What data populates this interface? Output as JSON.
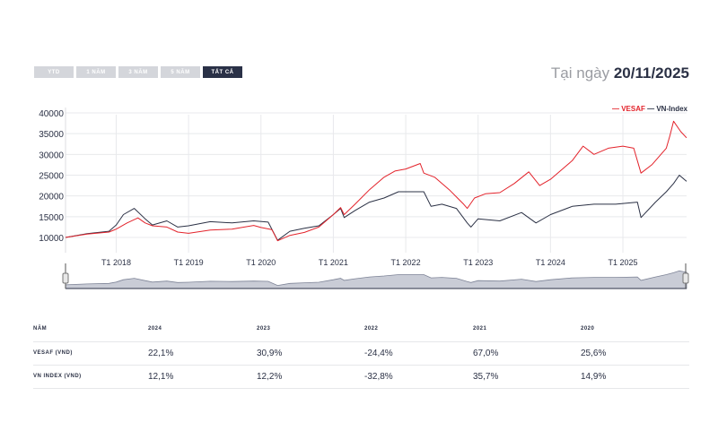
{
  "range_buttons": [
    {
      "label": "YTD",
      "active": false
    },
    {
      "label": "1 NĂM",
      "active": false
    },
    {
      "label": "3 NĂM",
      "active": false
    },
    {
      "label": "5 NĂM",
      "active": false
    },
    {
      "label": "TẤT CẢ",
      "active": true
    }
  ],
  "as_of": {
    "prefix": "Tại ngày",
    "date": "20/11/2025"
  },
  "chart_data": {
    "type": "line",
    "title": "",
    "xlabel": "",
    "ylabel": "",
    "ylim": [
      6300,
      40000
    ],
    "xlim": [
      2017.3,
      2025.88
    ],
    "y_ticks": [
      10000,
      15000,
      20000,
      25000,
      30000,
      35000,
      40000
    ],
    "x_ticks": [
      {
        "x": 2018,
        "label": "T1 2018"
      },
      {
        "x": 2019,
        "label": "T1 2019"
      },
      {
        "x": 2020,
        "label": "T1 2020"
      },
      {
        "x": 2021,
        "label": "T1 2021"
      },
      {
        "x": 2022,
        "label": "T1 2022"
      },
      {
        "x": 2023,
        "label": "T1 2023"
      },
      {
        "x": 2024,
        "label": "T1 2024"
      },
      {
        "x": 2025,
        "label": "T1 2025"
      }
    ],
    "grid": true,
    "legend_position": "top-right",
    "series": [
      {
        "name": "VESAF",
        "color": "#e3232b",
        "points": [
          [
            2017.3,
            10000
          ],
          [
            2017.6,
            10800
          ],
          [
            2017.9,
            11300
          ],
          [
            2018.0,
            12000
          ],
          [
            2018.15,
            13500
          ],
          [
            2018.3,
            14700
          ],
          [
            2018.4,
            13500
          ],
          [
            2018.5,
            12800
          ],
          [
            2018.7,
            12500
          ],
          [
            2018.85,
            11300
          ],
          [
            2019.0,
            11000
          ],
          [
            2019.3,
            11800
          ],
          [
            2019.6,
            12000
          ],
          [
            2019.9,
            12900
          ],
          [
            2020.0,
            12400
          ],
          [
            2020.15,
            11900
          ],
          [
            2020.23,
            9200
          ],
          [
            2020.4,
            10500
          ],
          [
            2020.6,
            11200
          ],
          [
            2020.8,
            12500
          ],
          [
            2021.0,
            15500
          ],
          [
            2021.1,
            17200
          ],
          [
            2021.15,
            15500
          ],
          [
            2021.3,
            18000
          ],
          [
            2021.5,
            21500
          ],
          [
            2021.7,
            24500
          ],
          [
            2021.85,
            26000
          ],
          [
            2022.0,
            26500
          ],
          [
            2022.2,
            27800
          ],
          [
            2022.25,
            25500
          ],
          [
            2022.4,
            24500
          ],
          [
            2022.6,
            21500
          ],
          [
            2022.8,
            18000
          ],
          [
            2022.85,
            17000
          ],
          [
            2022.95,
            19500
          ],
          [
            2023.1,
            20500
          ],
          [
            2023.3,
            20800
          ],
          [
            2023.5,
            23000
          ],
          [
            2023.7,
            25800
          ],
          [
            2023.85,
            22500
          ],
          [
            2024.0,
            24000
          ],
          [
            2024.2,
            27000
          ],
          [
            2024.3,
            28500
          ],
          [
            2024.45,
            32000
          ],
          [
            2024.6,
            30000
          ],
          [
            2024.8,
            31500
          ],
          [
            2025.0,
            32000
          ],
          [
            2025.15,
            31500
          ],
          [
            2025.25,
            25500
          ],
          [
            2025.4,
            27500
          ],
          [
            2025.6,
            31500
          ],
          [
            2025.65,
            34500
          ],
          [
            2025.7,
            38000
          ],
          [
            2025.8,
            35500
          ],
          [
            2025.88,
            34000
          ]
        ]
      },
      {
        "name": "VN-Index",
        "color": "#2b3145",
        "points": [
          [
            2017.3,
            10000
          ],
          [
            2017.6,
            10900
          ],
          [
            2017.9,
            11500
          ],
          [
            2018.0,
            13000
          ],
          [
            2018.1,
            15500
          ],
          [
            2018.25,
            17000
          ],
          [
            2018.4,
            14500
          ],
          [
            2018.5,
            13000
          ],
          [
            2018.7,
            14000
          ],
          [
            2018.85,
            12500
          ],
          [
            2019.0,
            12800
          ],
          [
            2019.3,
            13800
          ],
          [
            2019.6,
            13500
          ],
          [
            2019.9,
            14000
          ],
          [
            2020.1,
            13700
          ],
          [
            2020.23,
            9300
          ],
          [
            2020.4,
            11500
          ],
          [
            2020.6,
            12200
          ],
          [
            2020.8,
            12800
          ],
          [
            2021.0,
            15500
          ],
          [
            2021.1,
            17000
          ],
          [
            2021.15,
            14800
          ],
          [
            2021.3,
            16500
          ],
          [
            2021.5,
            18500
          ],
          [
            2021.7,
            19500
          ],
          [
            2021.9,
            21000
          ],
          [
            2022.1,
            21000
          ],
          [
            2022.25,
            21000
          ],
          [
            2022.35,
            17500
          ],
          [
            2022.5,
            18000
          ],
          [
            2022.7,
            17000
          ],
          [
            2022.85,
            13500
          ],
          [
            2022.9,
            12500
          ],
          [
            2023.0,
            14500
          ],
          [
            2023.3,
            14000
          ],
          [
            2023.6,
            16000
          ],
          [
            2023.8,
            13500
          ],
          [
            2024.0,
            15500
          ],
          [
            2024.3,
            17500
          ],
          [
            2024.6,
            18000
          ],
          [
            2024.9,
            18000
          ],
          [
            2025.2,
            18500
          ],
          [
            2025.25,
            14800
          ],
          [
            2025.45,
            18500
          ],
          [
            2025.6,
            21000
          ],
          [
            2025.7,
            23000
          ],
          [
            2025.78,
            25000
          ],
          [
            2025.88,
            23500
          ]
        ]
      }
    ]
  },
  "table": {
    "headers": [
      "NĂM",
      "2024",
      "2023",
      "2022",
      "2021",
      "2020"
    ],
    "rows": [
      {
        "label": "VESAF (VND)",
        "values": [
          "22,1%",
          "30,9%",
          "-24,4%",
          "67,0%",
          "25,6%"
        ]
      },
      {
        "label": "VN INDEX (VND)",
        "values": [
          "12,1%",
          "12,2%",
          "-32,8%",
          "35,7%",
          "14,9%"
        ]
      }
    ]
  }
}
